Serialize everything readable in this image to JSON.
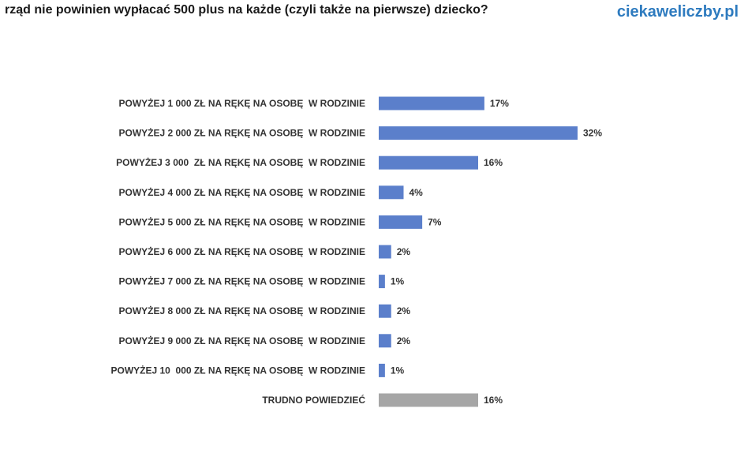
{
  "header": {
    "title": "rząd nie powinien wypłacać 500 plus na każde (czyli także na pierwsze) dziecko?",
    "brand": "ciekaweliczby.pl"
  },
  "colors": {
    "bar": "#5b7fcb",
    "bar_other": "#a6a6a6",
    "brand": "#2e7bbf"
  },
  "chart_data": {
    "type": "bar",
    "orientation": "horizontal",
    "title": "",
    "xlabel": "",
    "ylabel": "",
    "categories": [
      "POWYŻEJ 1 000 ZŁ NA RĘKĘ NA OSOBĘ  W RODZINIE",
      "POWYŻEJ 2 000 ZŁ NA RĘKĘ NA OSOBĘ  W RODZINIE",
      "POWYŻEJ 3 000  ZŁ NA RĘKĘ NA OSOBĘ  W RODZINIE",
      "POWYŻEJ 4 000 ZŁ NA RĘKĘ NA OSOBĘ  W RODZINIE",
      "POWYŻEJ 5 000 ZŁ NA RĘKĘ NA OSOBĘ  W RODZINIE",
      "POWYŻEJ 6 000 ZŁ NA RĘKĘ NA OSOBĘ  W RODZINIE",
      "POWYŻEJ 7 000 ZŁ NA RĘKĘ NA OSOBĘ  W RODZINIE",
      "POWYŻEJ 8 000 ZŁ NA RĘKĘ NA OSOBĘ  W RODZINIE",
      "POWYŻEJ 9 000 ZŁ NA RĘKĘ NA OSOBĘ  W RODZINIE",
      "POWYŻEJ 10  000 ZŁ NA RĘKĘ NA OSOBĘ  W RODZINIE",
      "TRUDNO POWIEDZIEĆ"
    ],
    "values": [
      17,
      32,
      16,
      4,
      7,
      2,
      1,
      2,
      2,
      1,
      16
    ],
    "value_labels": [
      "17%",
      "32%",
      "16%",
      "4%",
      "7%",
      "2%",
      "1%",
      "2%",
      "2%",
      "1%",
      "16%"
    ],
    "highlight_last_gray": true,
    "xlim": [
      0,
      32
    ],
    "grid": false,
    "legend": "none"
  }
}
